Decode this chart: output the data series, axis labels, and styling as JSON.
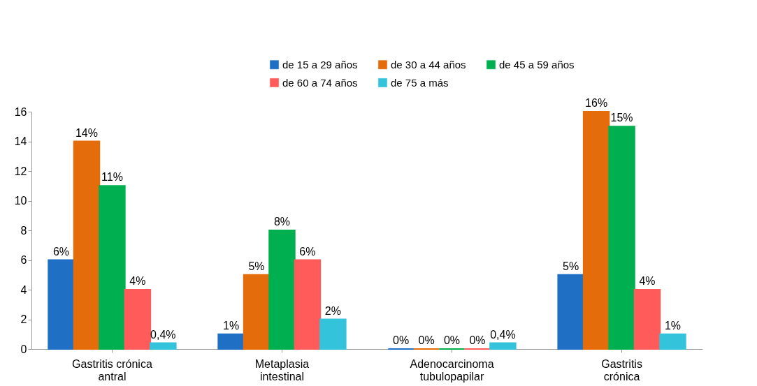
{
  "chart_data": {
    "type": "bar",
    "categories": [
      "Gastritis crónica\nantral",
      "Metaplasia\nintestinal",
      "Adenocarcinoma\ntubulopapilar",
      "Gastritis\ncrónica"
    ],
    "series": [
      {
        "name": "de 15 a 29 años",
        "color": "#1f6fc5",
        "values": [
          6,
          1,
          0,
          5
        ],
        "value_labels": [
          "6%",
          "1%",
          "0%",
          "5%"
        ]
      },
      {
        "name": "de 30 a 44 años",
        "color": "#e46c0a",
        "values": [
          14,
          5,
          0,
          16
        ],
        "value_labels": [
          "14%",
          "5%",
          "0%",
          "16%"
        ]
      },
      {
        "name": "de 45 a 59 años",
        "color": "#00b050",
        "values": [
          11,
          8,
          0,
          15
        ],
        "value_labels": [
          "11%",
          "8%",
          "0%",
          "15%"
        ]
      },
      {
        "name": "de 60 a 74 años",
        "color": "#ff5b5b",
        "values": [
          4,
          6,
          0,
          4
        ],
        "value_labels": [
          "4%",
          "6%",
          "0%",
          "4%"
        ]
      },
      {
        "name": "de 75 a más",
        "color": "#33c3db",
        "values": [
          0.4,
          2,
          0.4,
          1
        ],
        "value_labels": [
          "0,4%",
          "2%",
          "0,4%",
          "1%"
        ]
      }
    ],
    "ylim": [
      0,
      16
    ],
    "yticks": [
      0,
      2,
      4,
      6,
      8,
      10,
      12,
      14,
      16
    ],
    "grid": false,
    "legend": "top right"
  }
}
